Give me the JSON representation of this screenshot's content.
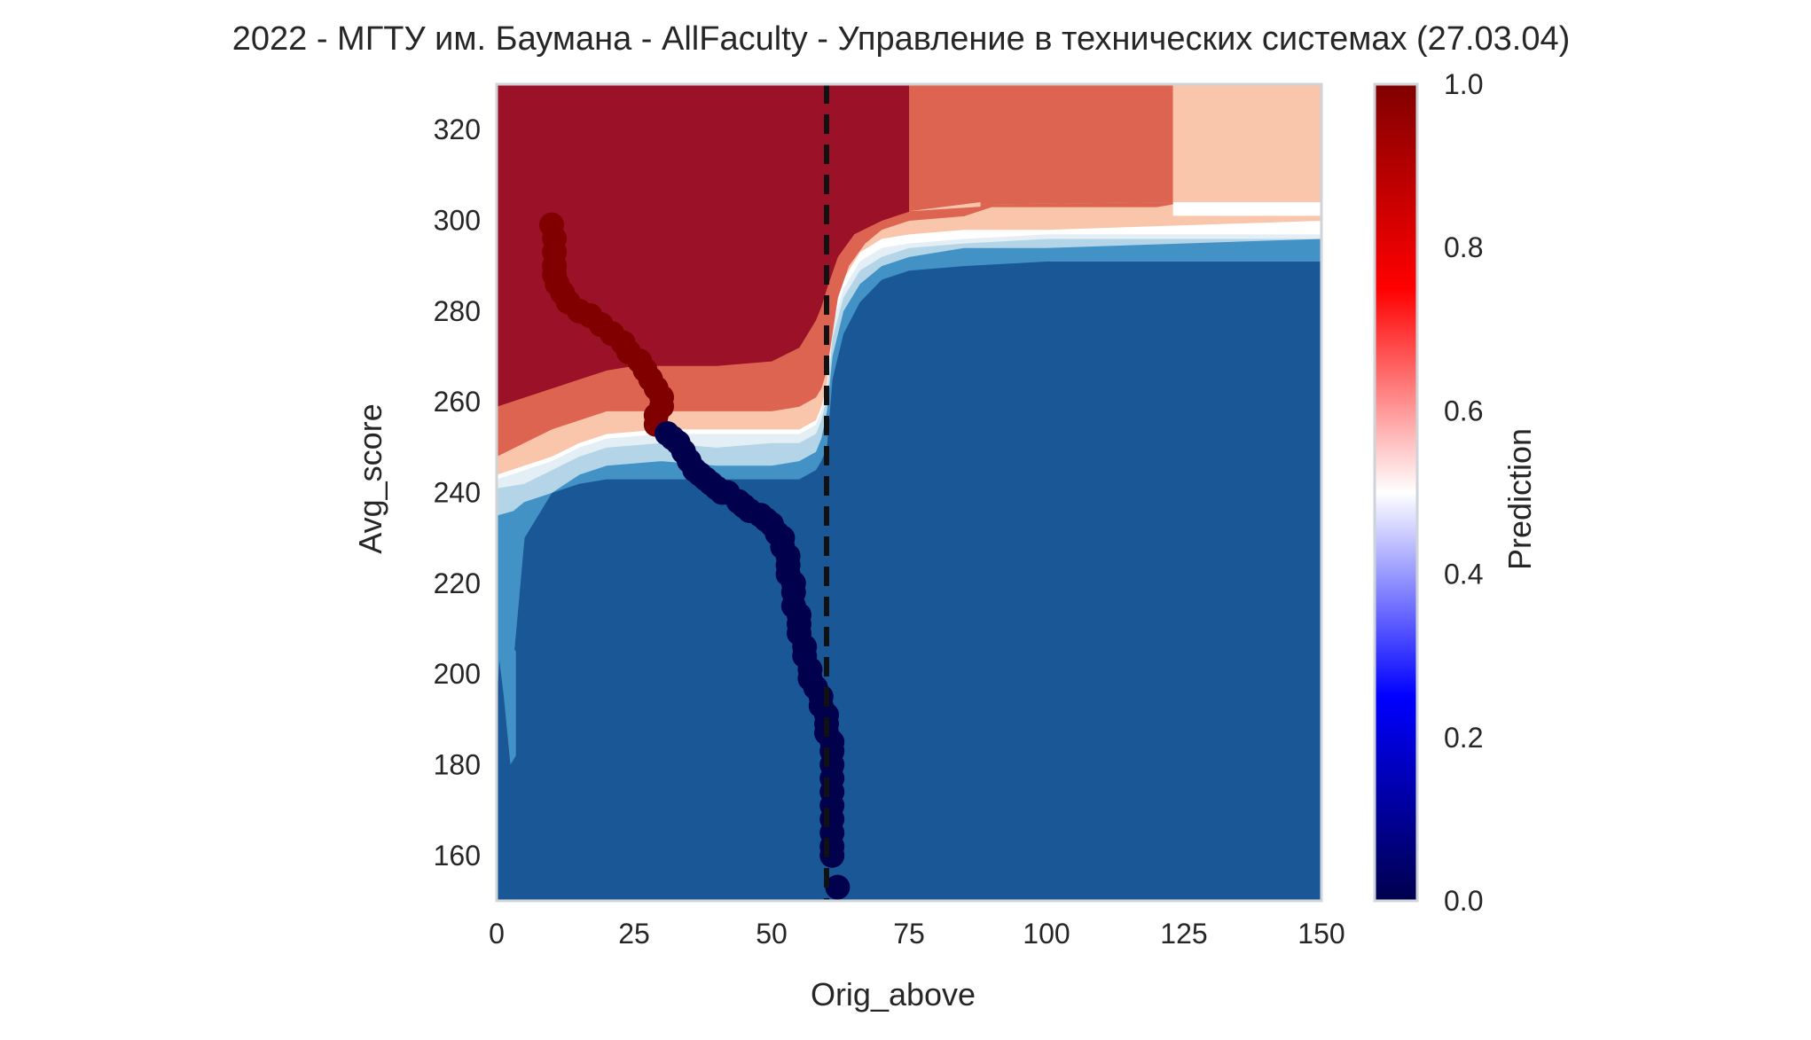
{
  "chart_data": {
    "type": "contour",
    "title": "2022 - МГТУ им. Баумана - AllFaculty - Управление в технических системах (27.03.04)",
    "xlabel": "Orig_above",
    "ylabel": "Avg_score",
    "xlim": [
      0,
      150
    ],
    "ylim": [
      150,
      330
    ],
    "x_ticks": [
      0,
      25,
      50,
      75,
      100,
      125,
      150
    ],
    "y_ticks": [
      160,
      180,
      200,
      220,
      240,
      260,
      280,
      300,
      320
    ],
    "grid": false,
    "colorbar": {
      "label": "Prediction",
      "range": [
        0,
        1
      ],
      "ticks": [
        "0.0",
        "0.2",
        "0.4",
        "0.6",
        "0.8",
        "1.0"
      ],
      "colormap": "seismic",
      "colors": [
        "#00004d",
        "#0000ff",
        "#ffffff",
        "#ff0000",
        "#800000"
      ]
    },
    "threshold_line": {
      "x": 60,
      "style": "dashed",
      "color": "#111111"
    },
    "contour_levels": [
      {
        "level": 0.05,
        "color": "#1a5796"
      },
      {
        "level": 0.15,
        "color": "#4292c6"
      },
      {
        "level": 0.25,
        "color": "#b4d4e8"
      },
      {
        "level": 0.35,
        "color": "#e4eef5"
      },
      {
        "level": 0.5,
        "color": "#ffffff"
      },
      {
        "level": 0.65,
        "color": "#f9c5ab"
      },
      {
        "level": 0.8,
        "color": "#dc6450"
      },
      {
        "level": 0.95,
        "color": "#9b1127"
      }
    ],
    "boundary_curves": [
      {
        "name": "b1",
        "points": [
          [
            0,
            206
          ],
          [
            3,
            203
          ],
          [
            5,
            230
          ],
          [
            8,
            236
          ],
          [
            10,
            240
          ],
          [
            15,
            242
          ],
          [
            20,
            243
          ],
          [
            25,
            243
          ],
          [
            30,
            243
          ],
          [
            40,
            243
          ],
          [
            50,
            243
          ],
          [
            55,
            243
          ],
          [
            58,
            245
          ],
          [
            59,
            247
          ],
          [
            60,
            250
          ],
          [
            61,
            265
          ],
          [
            63,
            275
          ],
          [
            66,
            282
          ],
          [
            70,
            287
          ],
          [
            75,
            289
          ],
          [
            85,
            290
          ],
          [
            100,
            291
          ],
          [
            125,
            291
          ],
          [
            150,
            291
          ]
        ]
      },
      {
        "name": "b2",
        "points": [
          [
            0,
            235
          ],
          [
            3,
            236
          ],
          [
            5,
            238
          ],
          [
            10,
            240
          ],
          [
            15,
            244
          ],
          [
            20,
            246
          ],
          [
            30,
            247
          ],
          [
            40,
            246
          ],
          [
            50,
            246
          ],
          [
            55,
            247
          ],
          [
            58,
            249
          ],
          [
            59,
            252
          ],
          [
            60,
            258
          ],
          [
            61,
            270
          ],
          [
            63,
            280
          ],
          [
            66,
            286
          ],
          [
            70,
            290
          ],
          [
            75,
            292
          ],
          [
            85,
            294
          ],
          [
            100,
            294
          ],
          [
            125,
            295
          ],
          [
            150,
            296
          ]
        ]
      },
      {
        "name": "b3",
        "points": [
          [
            0,
            241
          ],
          [
            5,
            242
          ],
          [
            10,
            245
          ],
          [
            15,
            248
          ],
          [
            20,
            250
          ],
          [
            30,
            251
          ],
          [
            40,
            250
          ],
          [
            50,
            251
          ],
          [
            55,
            251
          ],
          [
            58,
            253
          ],
          [
            59,
            256
          ],
          [
            60,
            261
          ],
          [
            61,
            274
          ],
          [
            63,
            283
          ],
          [
            66,
            289
          ],
          [
            70,
            292
          ],
          [
            75,
            294
          ],
          [
            85,
            295
          ],
          [
            100,
            296
          ],
          [
            125,
            296
          ],
          [
            150,
            296
          ]
        ]
      },
      {
        "name": "b4",
        "points": [
          [
            0,
            243
          ],
          [
            5,
            245
          ],
          [
            10,
            247
          ],
          [
            15,
            250
          ],
          [
            20,
            252
          ],
          [
            30,
            253
          ],
          [
            40,
            253
          ],
          [
            50,
            253
          ],
          [
            55,
            253
          ],
          [
            58,
            255
          ],
          [
            59,
            258
          ],
          [
            60,
            263
          ],
          [
            61,
            277
          ],
          [
            63,
            285
          ],
          [
            66,
            291
          ],
          [
            70,
            294
          ],
          [
            75,
            295
          ],
          [
            85,
            296
          ],
          [
            100,
            297
          ],
          [
            125,
            297
          ],
          [
            150,
            297
          ]
        ]
      },
      {
        "name": "b5",
        "points": [
          [
            0,
            244
          ],
          [
            5,
            246
          ],
          [
            10,
            248
          ],
          [
            15,
            251
          ],
          [
            20,
            253
          ],
          [
            30,
            254
          ],
          [
            40,
            254
          ],
          [
            50,
            254
          ],
          [
            55,
            254
          ],
          [
            58,
            256
          ],
          [
            59,
            259
          ],
          [
            60,
            264
          ],
          [
            61,
            279
          ],
          [
            63,
            287
          ],
          [
            66,
            293
          ],
          [
            70,
            296
          ],
          [
            75,
            297
          ],
          [
            85,
            298
          ],
          [
            100,
            298
          ],
          [
            125,
            299
          ],
          [
            150,
            300
          ]
        ]
      },
      {
        "name": "b6",
        "points": [
          [
            0,
            248
          ],
          [
            5,
            251
          ],
          [
            10,
            254
          ],
          [
            15,
            256
          ],
          [
            20,
            258
          ],
          [
            25,
            258
          ],
          [
            30,
            258
          ],
          [
            40,
            258
          ],
          [
            50,
            258
          ],
          [
            55,
            259
          ],
          [
            58,
            261
          ],
          [
            59,
            263
          ],
          [
            60,
            267
          ],
          [
            62,
            283
          ],
          [
            64,
            290
          ],
          [
            67,
            295
          ],
          [
            70,
            298
          ],
          [
            75,
            300
          ],
          [
            85,
            301
          ],
          [
            90,
            303
          ],
          [
            100,
            303
          ],
          [
            120,
            303
          ],
          [
            125,
            304
          ],
          [
            150,
            304
          ]
        ]
      },
      {
        "name": "b7",
        "points": [
          [
            0,
            259
          ],
          [
            5,
            261
          ],
          [
            10,
            263
          ],
          [
            15,
            265
          ],
          [
            20,
            267
          ],
          [
            25,
            268
          ],
          [
            30,
            268
          ],
          [
            40,
            268
          ],
          [
            50,
            269
          ],
          [
            55,
            272
          ],
          [
            58,
            278
          ],
          [
            59,
            281
          ],
          [
            60,
            285
          ],
          [
            62,
            292
          ],
          [
            65,
            297
          ],
          [
            70,
            300
          ],
          [
            75,
            302
          ],
          [
            75,
            330
          ],
          [
            123,
            330
          ],
          [
            124,
            330
          ],
          [
            125,
            330
          ],
          [
            150,
            330
          ]
        ]
      },
      {
        "name": "b8",
        "points": [
          [
            0,
            330
          ],
          [
            70,
            330
          ],
          [
            74,
            330
          ],
          [
            75,
            330
          ],
          [
            150,
            330
          ]
        ]
      }
    ],
    "scatter_admitted": {
      "color": "#800000",
      "points": [
        [
          10,
          299
        ],
        [
          10.5,
          296
        ],
        [
          10.5,
          293
        ],
        [
          10.5,
          290
        ],
        [
          10.5,
          288
        ],
        [
          11,
          286
        ],
        [
          12,
          284
        ],
        [
          13,
          282
        ],
        [
          15,
          280
        ],
        [
          17,
          279
        ],
        [
          19,
          277
        ],
        [
          21,
          275
        ],
        [
          23,
          273
        ],
        [
          24,
          271
        ],
        [
          26,
          269
        ],
        [
          27,
          267
        ],
        [
          28,
          265
        ],
        [
          29,
          263
        ],
        [
          30,
          261
        ],
        [
          30,
          259
        ],
        [
          29,
          257
        ],
        [
          29,
          255
        ]
      ]
    },
    "scatter_rejected": {
      "color": "#00004d",
      "points": [
        [
          31,
          253
        ],
        [
          32,
          252
        ],
        [
          33,
          251
        ],
        [
          34,
          249
        ],
        [
          35,
          247
        ],
        [
          36,
          245
        ],
        [
          37,
          244
        ],
        [
          38,
          243
        ],
        [
          39,
          242
        ],
        [
          40,
          241
        ],
        [
          41,
          240
        ],
        [
          42,
          240
        ],
        [
          44,
          238
        ],
        [
          45,
          237
        ],
        [
          46,
          236
        ],
        [
          48,
          235
        ],
        [
          49,
          234
        ],
        [
          50,
          233
        ],
        [
          51,
          231
        ],
        [
          52,
          230
        ],
        [
          52,
          228
        ],
        [
          53,
          226
        ],
        [
          53,
          224
        ],
        [
          53,
          222
        ],
        [
          54,
          220
        ],
        [
          54,
          218
        ],
        [
          54,
          215
        ],
        [
          55,
          213
        ],
        [
          55,
          211
        ],
        [
          55,
          209
        ],
        [
          56,
          206
        ],
        [
          56,
          204
        ],
        [
          57,
          201
        ],
        [
          57,
          199
        ],
        [
          58,
          197
        ],
        [
          59,
          195
        ],
        [
          59,
          193
        ],
        [
          60,
          191
        ],
        [
          60,
          189
        ],
        [
          60,
          187
        ],
        [
          61,
          185
        ],
        [
          61,
          183
        ],
        [
          61,
          180
        ],
        [
          61,
          177
        ],
        [
          61,
          174
        ],
        [
          61,
          171
        ],
        [
          61,
          168
        ],
        [
          61,
          165
        ],
        [
          61,
          162
        ],
        [
          61,
          160
        ],
        [
          62,
          153
        ]
      ]
    }
  }
}
